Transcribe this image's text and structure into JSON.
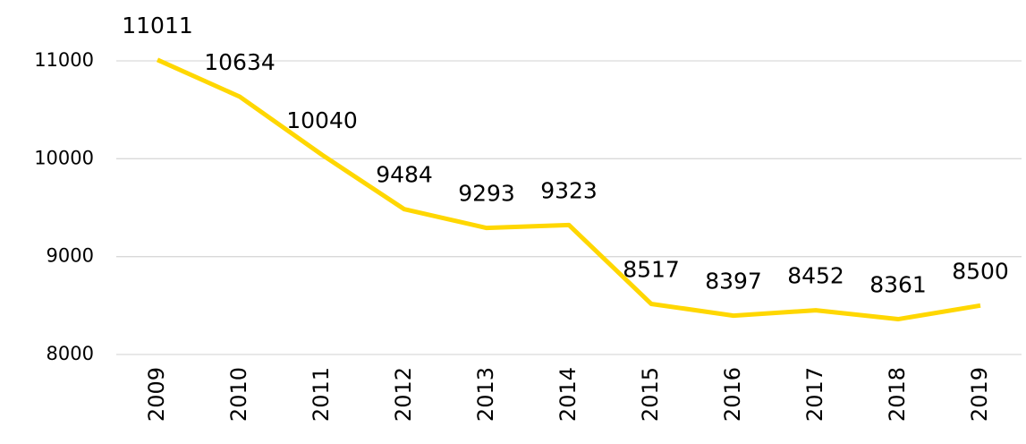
{
  "chart_data": {
    "type": "line",
    "categories": [
      "2009",
      "2010",
      "2011",
      "2012",
      "2013",
      "2014",
      "2015",
      "2016",
      "2017",
      "2018",
      "2019"
    ],
    "values": [
      11011,
      10634,
      10040,
      9484,
      9293,
      9323,
      8517,
      8397,
      8452,
      8361,
      8500
    ],
    "color": "#ffd700",
    "ylim": [
      8000,
      11000
    ],
    "yticks": [
      8000,
      9000,
      10000,
      11000
    ],
    "grid": true
  }
}
